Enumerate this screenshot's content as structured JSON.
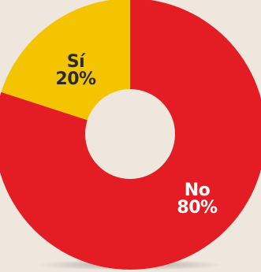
{
  "chart_data": {
    "type": "pie",
    "variant": "donut",
    "categories": [
      "Sí",
      "No"
    ],
    "values": [
      20,
      80
    ],
    "labels": [
      "20%",
      "80%"
    ],
    "colors": [
      "#f5c400",
      "#e41d24"
    ],
    "label_colors": [
      "#2a2a2a",
      "#ffffff"
    ],
    "background": "#efe6de",
    "title": "",
    "legend": "none"
  }
}
